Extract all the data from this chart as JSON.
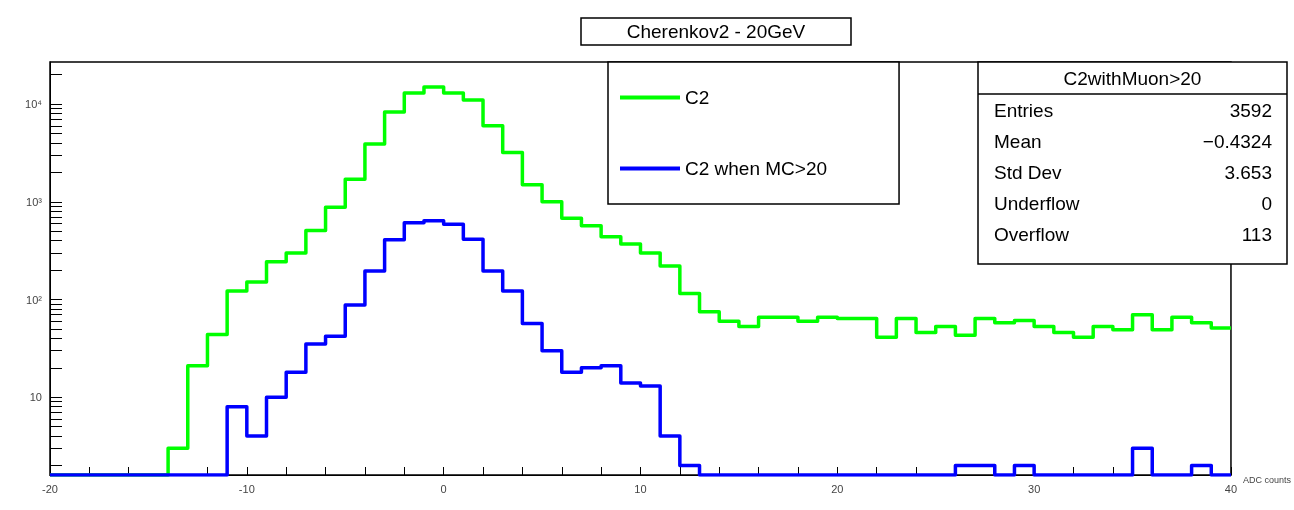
{
  "chart_data": {
    "type": "histogram",
    "title": "Cherenkov2 - 20GeV",
    "xlabel": "ADC counts",
    "bins": [
      -20,
      -19,
      -18,
      -17,
      -16,
      -15,
      -14,
      -13,
      -12,
      -11,
      -10,
      -9,
      -8,
      -7,
      -6,
      -5,
      -4,
      -3,
      -2,
      -1,
      0,
      1,
      2,
      3,
      4,
      5,
      6,
      7,
      8,
      9,
      10,
      11,
      12,
      13,
      14,
      15,
      16,
      17,
      18,
      19,
      20,
      21,
      22,
      23,
      24,
      25,
      26,
      27,
      28,
      29,
      30,
      31,
      32,
      33,
      34,
      35,
      36,
      37,
      38,
      39,
      40
    ],
    "series": [
      {
        "name": "C2",
        "color": "#00ff00",
        "values": [
          null,
          null,
          null,
          null,
          null,
          null,
          3,
          21,
          44,
          122,
          151,
          243,
          300,
          510,
          880,
          1700,
          3900,
          8300,
          13000,
          15000,
          13000,
          11000,
          6000,
          3200,
          1500,
          1000,
          680,
          570,
          440,
          370,
          300,
          220,
          115,
          75,
          60,
          53,
          66,
          66,
          60,
          66,
          64,
          64,
          41,
          64,
          46,
          53,
          43,
          64,
          58,
          61,
          53,
          46,
          41,
          53,
          49,
          70,
          49,
          66,
          58,
          51
        ]
      },
      {
        "name": "C2 when MC>20",
        "color": "#0000ff",
        "values": [
          null,
          null,
          null,
          null,
          null,
          null,
          null,
          null,
          null,
          8,
          4,
          10,
          18,
          35,
          42,
          88,
          196,
          410,
          610,
          640,
          590,
          415,
          196,
          122,
          57,
          30,
          18,
          20,
          21,
          14,
          13,
          4,
          2,
          null,
          null,
          null,
          null,
          null,
          null,
          null,
          null,
          null,
          null,
          null,
          null,
          null,
          2,
          2,
          null,
          2,
          null,
          null,
          null,
          null,
          null,
          3,
          null,
          null,
          2,
          null
        ]
      }
    ],
    "annotations": [
      "C2withMuon>20",
      "Entries",
      "3592",
      "Mean",
      "−0.4324",
      "Std Dev",
      "3.653",
      "Underflow",
      "0",
      "Overflow",
      "113"
    ],
    "xlim": [
      -20,
      40
    ],
    "xticks": [
      -20,
      {
        "value": -18,
        "label": null
      },
      {
        "value": -16,
        "label": null
      },
      {
        "value": -14,
        "label": null
      },
      {
        "value": -12,
        "label": null
      },
      -10,
      {
        "value": -8,
        "label": null
      },
      {
        "value": -6,
        "label": null
      },
      {
        "value": -4,
        "label": null
      },
      {
        "value": -2,
        "label": null
      },
      0,
      {
        "value": 2,
        "label": null
      },
      {
        "value": 4,
        "label": null
      },
      {
        "value": 6,
        "label": null
      },
      {
        "value": 8,
        "label": null
      },
      10,
      {
        "value": 12,
        "label": null
      },
      {
        "value": 14,
        "label": null
      },
      {
        "value": 16,
        "label": null
      },
      {
        "value": 18,
        "label": null
      },
      20,
      {
        "value": 22,
        "label": null
      },
      {
        "value": 24,
        "label": null
      },
      {
        "value": 26,
        "label": null
      },
      {
        "value": 28,
        "label": null
      },
      30,
      {
        "value": 32,
        "label": null
      },
      {
        "value": 34,
        "label": null
      },
      {
        "value": 36,
        "label": null
      },
      {
        "value": 38,
        "label": null
      },
      40
    ],
    "ylim": [
      1.6,
      27000
    ],
    "log": true,
    "yticks": [
      {
        "value": 2,
        "label": null
      },
      {
        "value": 3,
        "label": null
      },
      {
        "value": 4,
        "label": null
      },
      {
        "value": 5,
        "label": null
      },
      {
        "value": 6,
        "label": null
      },
      {
        "value": 7,
        "label": null
      },
      {
        "value": 8,
        "label": null
      },
      {
        "value": 9,
        "label": null
      },
      10,
      {
        "value": 20,
        "label": null
      },
      {
        "value": 30,
        "label": null
      },
      {
        "value": 40,
        "label": null
      },
      {
        "value": 50,
        "label": null
      },
      {
        "value": 60,
        "label": null
      },
      {
        "value": 70,
        "label": null
      },
      {
        "value": 80,
        "label": null
      },
      {
        "value": 90,
        "label": null
      },
      {
        "value": 100,
        "label": "10²"
      },
      {
        "value": 200,
        "label": null
      },
      {
        "value": 300,
        "label": null
      },
      {
        "value": 400,
        "label": null
      },
      {
        "value": 500,
        "label": null
      },
      {
        "value": 600,
        "label": null
      },
      {
        "value": 700,
        "label": null
      },
      {
        "value": 800,
        "label": null
      },
      {
        "value": 900,
        "label": null
      },
      {
        "value": 1000,
        "label": "10³"
      },
      {
        "value": 2000,
        "label": null
      },
      {
        "value": 3000,
        "label": null
      },
      {
        "value": 4000,
        "label": null
      },
      {
        "value": 5000,
        "label": null
      },
      {
        "value": 6000,
        "label": null
      },
      {
        "value": 7000,
        "label": null
      },
      {
        "value": 8000,
        "label": null
      },
      {
        "value": 9000,
        "label": null
      },
      {
        "value": 10000,
        "label": "10⁴"
      },
      {
        "value": 20000,
        "label": null
      }
    ],
    "grid": false,
    "legend": "top",
    "line_style": "solid",
    "marker": "none"
  }
}
